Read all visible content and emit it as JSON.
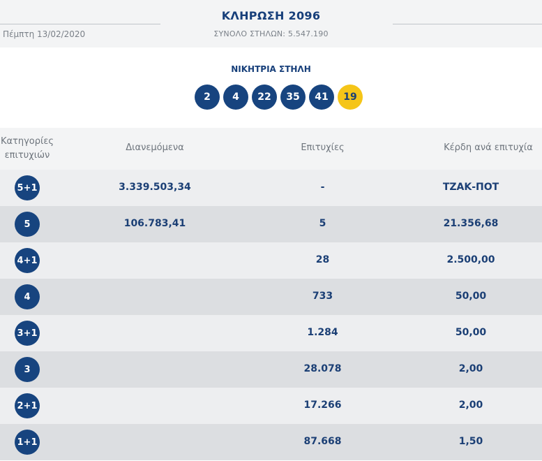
{
  "draw": {
    "title": "ΚΛΗΡΩΣΗ 2096",
    "date": "Πέμπτη 13/02/2020",
    "total_columns": "ΣΥΝΟΛΟ ΣΤΗΛΩΝ: 5.547.190"
  },
  "winning_line": {
    "label": "ΝΙΚΗΤΡΙΑ ΣΤΗΛΗ",
    "numbers": [
      "2",
      "4",
      "22",
      "35",
      "41"
    ],
    "bonus": "19"
  },
  "table": {
    "headers": {
      "category_line1": "Κατηγορίες",
      "category_line2": "επιτυχιών",
      "distributed": "Διανεμόμενα",
      "winners": "Επιτυχίες",
      "prize": "Κέρδη ανά επιτυχία"
    },
    "rows": [
      {
        "category": "5+1",
        "distributed": "3.339.503,34",
        "winners": "-",
        "prize": "ΤΖΑΚ-ΠΟΤ"
      },
      {
        "category": "5",
        "distributed": "106.783,41",
        "winners": "5",
        "prize": "21.356,68"
      },
      {
        "category": "4+1",
        "distributed": "",
        "winners": "28",
        "prize": "2.500,00"
      },
      {
        "category": "4",
        "distributed": "",
        "winners": "733",
        "prize": "50,00"
      },
      {
        "category": "3+1",
        "distributed": "",
        "winners": "1.284",
        "prize": "50,00"
      },
      {
        "category": "3",
        "distributed": "",
        "winners": "28.078",
        "prize": "2,00"
      },
      {
        "category": "2+1",
        "distributed": "",
        "winners": "17.266",
        "prize": "2,00"
      },
      {
        "category": "1+1",
        "distributed": "",
        "winners": "87.668",
        "prize": "1,50"
      }
    ]
  },
  "colors": {
    "primary_blue": "#17447f",
    "bonus_yellow": "#f5c518",
    "header_bg": "#f3f4f5",
    "row_light": "#edeef0",
    "row_dark": "#dcdee1"
  }
}
